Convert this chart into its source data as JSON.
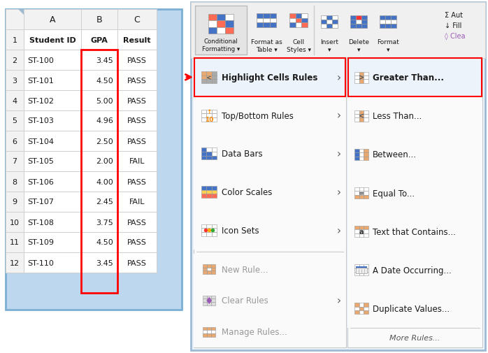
{
  "spreadsheet": {
    "rows": [
      [
        "2",
        "ST-100",
        "3.45",
        "PASS"
      ],
      [
        "3",
        "ST-101",
        "4.50",
        "PASS"
      ],
      [
        "4",
        "ST-102",
        "5.00",
        "PASS"
      ],
      [
        "5",
        "ST-103",
        "4.96",
        "PASS"
      ],
      [
        "6",
        "ST-104",
        "2.50",
        "PASS"
      ],
      [
        "7",
        "ST-105",
        "2.00",
        "FAIL"
      ],
      [
        "8",
        "ST-106",
        "4.00",
        "PASS"
      ],
      [
        "9",
        "ST-107",
        "2.45",
        "FAIL"
      ],
      [
        "10",
        "ST-108",
        "3.75",
        "PASS"
      ],
      [
        "11",
        "ST-109",
        "4.50",
        "PASS"
      ],
      [
        "12",
        "ST-110",
        "3.45",
        "PASS"
      ]
    ]
  },
  "left_menu": [
    {
      "label": "Highlight Cells Rules",
      "highlighted": true,
      "has_arrow": true,
      "dimmed": false
    },
    {
      "label": "Top/Bottom Rules",
      "highlighted": false,
      "has_arrow": true,
      "dimmed": false
    },
    {
      "label": "Data Bars",
      "highlighted": false,
      "has_arrow": true,
      "dimmed": false
    },
    {
      "label": "Color Scales",
      "highlighted": false,
      "has_arrow": true,
      "dimmed": false
    },
    {
      "label": "Icon Sets",
      "highlighted": false,
      "has_arrow": true,
      "dimmed": false
    },
    {
      "label": "New Rule...",
      "highlighted": false,
      "has_arrow": false,
      "dimmed": true
    },
    {
      "label": "Clear Rules",
      "highlighted": false,
      "has_arrow": true,
      "dimmed": true
    },
    {
      "label": "Manage Rules...",
      "highlighted": false,
      "has_arrow": false,
      "dimmed": true
    }
  ],
  "right_menu": [
    {
      "label": "Greater Than...",
      "highlighted": true,
      "dimmed": false
    },
    {
      "label": "Less Than...",
      "highlighted": false,
      "dimmed": false
    },
    {
      "label": "Between...",
      "highlighted": false,
      "dimmed": false
    },
    {
      "label": "Equal To...",
      "highlighted": false,
      "dimmed": false
    },
    {
      "label": "Text that Contains...",
      "highlighted": false,
      "dimmed": false
    },
    {
      "label": "A Date Occurring...",
      "highlighted": false,
      "dimmed": false
    },
    {
      "label": "Duplicate Values...",
      "highlighted": false,
      "dimmed": false
    },
    {
      "label": "More Rules...",
      "highlighted": false,
      "dimmed": true
    }
  ],
  "panel_bg": "#BDD7EE",
  "panel_border": "#7BAFD4",
  "cell_bg": "#FFFFFF",
  "header_bg": "#F2F2F2",
  "grid_color": "#D0D0D0",
  "red_color": "#FF0000",
  "highlight_bg": "#EDF3FA",
  "menu_bg": "#F5F5F5",
  "menu_border": "#C8C8C8",
  "right_panel_bg": "#EBF3FB",
  "right_panel_border": "#9DBAD4",
  "ribbon_bg": "#F0F0F0",
  "ribbon_border": "#D8D8D8"
}
